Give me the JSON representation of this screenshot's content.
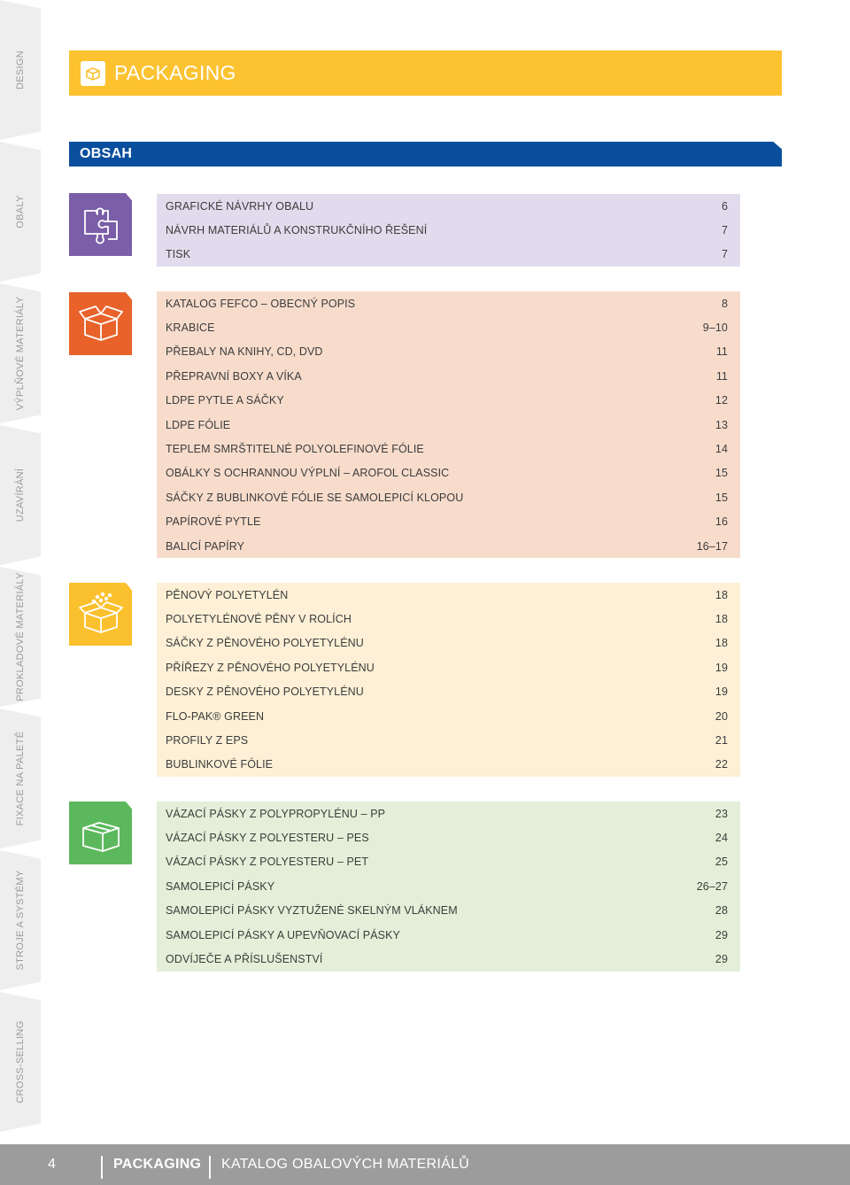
{
  "side_tabs": [
    "DESIGN",
    "OBALY",
    "VÝPLŇOVÉ MATERIÁLY",
    "UZAVÍRÁNÍ",
    "PROKLADOVÉ MATERIÁLY",
    "FIXACE NA PALETĚ",
    "STROJE A SYSTÉMY",
    "CROSS-SELLING"
  ],
  "header": {
    "title": "PACKAGING",
    "icon": "box-icon"
  },
  "contents": {
    "title": "OBSAH"
  },
  "sections": [
    {
      "icon": "puzzle-icon",
      "tile_color": "#7a5ea8",
      "bg_color": "#e2dbed",
      "rows": [
        {
          "label": "GRAFICKÉ NÁVRHY OBALU",
          "page": "6"
        },
        {
          "label": "NÁVRH MATERIÁLŮ A KONSTRUKČNÍHO ŘEŠENÍ",
          "page": "7"
        },
        {
          "label": "TISK",
          "page": "7"
        }
      ]
    },
    {
      "icon": "open-box-icon",
      "tile_color": "#e8622a",
      "bg_color": "#f7dccc",
      "rows": [
        {
          "label": "KATALOG FEFCO – OBECNÝ POPIS",
          "page": "8"
        },
        {
          "label": "KRABICE",
          "page": "9–10"
        },
        {
          "label": "PŘEBALY NA KNIHY, CD, DVD",
          "page": "11"
        },
        {
          "label": "PŘEPRAVNÍ BOXY A VÍKA",
          "page": "11"
        },
        {
          "label": "LDPE PYTLE A SÁČKY",
          "page": "12"
        },
        {
          "label": "LDPE FÓLIE",
          "page": "13"
        },
        {
          "label": "TEPLEM SMRŠTITELNÉ POLYOLEFINOVÉ FÓLIE",
          "page": "14"
        },
        {
          "label": "OBÁLKY S OCHRANNOU VÝPLNÍ – AROFOL CLASSIC",
          "page": "15"
        },
        {
          "label": "SÁČKY Z BUBLINKOVÉ FÓLIE SE SAMOLEPICÍ KLOPOU",
          "page": "15"
        },
        {
          "label": "PAPÍROVÉ PYTLE",
          "page": "16"
        },
        {
          "label": "BALICÍ PAPÍRY",
          "page": "16–17"
        }
      ]
    },
    {
      "icon": "box-with-filler-icon",
      "tile_color": "#fbc02d",
      "bg_color": "#fdf0d6",
      "rows": [
        {
          "label": "PĚNOVÝ POLYETYLÉN",
          "page": "18"
        },
        {
          "label": "POLYETYLÉNOVÉ PĚNY V ROLÍCH",
          "page": "18"
        },
        {
          "label": "SÁČKY Z PĚNOVÉHO POLYETYLÉNU",
          "page": "18"
        },
        {
          "label": "PŘÍŘEZY Z PĚNOVÉHO POLYETYLÉNU",
          "page": "19"
        },
        {
          "label": "DESKY Z PĚNOVÉHO POLYETYLÉNU",
          "page": "19"
        },
        {
          "label": "FLO-PAK® GREEN",
          "page": "20"
        },
        {
          "label": "PROFILY Z EPS",
          "page": "21"
        },
        {
          "label": "BUBLINKOVÉ FÓLIE",
          "page": "22"
        }
      ]
    },
    {
      "icon": "closed-box-icon",
      "tile_color": "#5cb85c",
      "bg_color": "#e3efd8",
      "rows": [
        {
          "label": "VÁZACÍ PÁSKY Z POLYPROPYLÉNU – PP",
          "page": "23"
        },
        {
          "label": "VÁZACÍ PÁSKY Z POLYESTERU – PES",
          "page": "24"
        },
        {
          "label": "VÁZACÍ PÁSKY Z POLYESTERU – PET",
          "page": "25"
        },
        {
          "label": "SAMOLEPICÍ PÁSKY",
          "page": "26–27"
        },
        {
          "label": "SAMOLEPICÍ PÁSKY VYZTUŽENÉ SKELNÝM VLÁKNEM",
          "page": "28"
        },
        {
          "label": "SAMOLEPICÍ PÁSKY A UPEVŇOVACÍ PÁSKY",
          "page": "29"
        },
        {
          "label": "ODVÍJEČE A PŘÍSLUŠENSTVÍ",
          "page": "29"
        }
      ]
    }
  ],
  "footer": {
    "page_number": "4",
    "section": "PACKAGING",
    "catalog": "KATALOG OBALOVÝCH MATERIÁLŮ"
  }
}
